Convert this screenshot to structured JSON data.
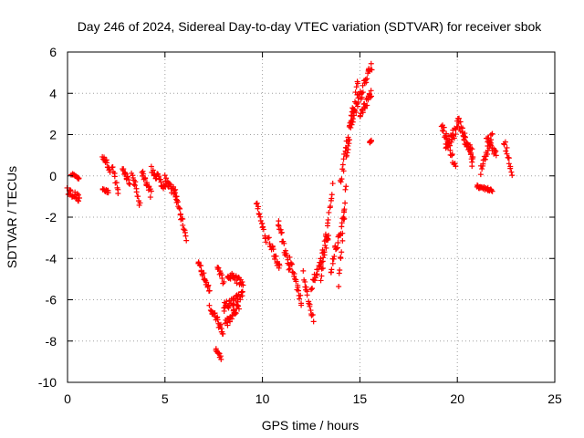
{
  "chart_data": {
    "type": "scatter",
    "title": "Day 246 of 2024, Sidereal Day-to-day VTEC variation (SDTVAR) for receiver sbok",
    "xlabel": "GPS time / hours",
    "ylabel": "SDTVAR / TECUs",
    "xlim": [
      0,
      25
    ],
    "ylim": [
      -10,
      6
    ],
    "xticks": [
      0,
      5,
      10,
      15,
      20,
      25
    ],
    "yticks": [
      -10,
      -8,
      -6,
      -4,
      -2,
      0,
      2,
      4,
      6
    ],
    "grid": true,
    "marker": "+",
    "color": "#ff0000",
    "series": [
      {
        "name": "SDTVAR",
        "segments": [
          {
            "x0": 0.0,
            "x1": 0.6,
            "y0": -0.7,
            "y1": -1.1,
            "spread": 0.35
          },
          {
            "x0": 0.2,
            "x1": 0.6,
            "y0": 0.1,
            "y1": -0.1,
            "spread": 0.15
          },
          {
            "x0": 1.8,
            "x1": 2.2,
            "y0": 1.0,
            "y1": 0.2,
            "spread": 0.3
          },
          {
            "x0": 1.8,
            "x1": 2.1,
            "y0": -0.6,
            "y1": -0.8,
            "spread": 0.15
          },
          {
            "x0": 2.3,
            "x1": 2.6,
            "y0": 0.5,
            "y1": -0.8,
            "spread": 0.25
          },
          {
            "x0": 2.8,
            "x1": 3.2,
            "y0": 0.3,
            "y1": -0.3,
            "spread": 0.3
          },
          {
            "x0": 3.3,
            "x1": 3.7,
            "y0": 0.2,
            "y1": -1.4,
            "spread": 0.3
          },
          {
            "x0": 3.8,
            "x1": 4.3,
            "y0": 0.2,
            "y1": -0.9,
            "spread": 0.4
          },
          {
            "x0": 4.3,
            "x1": 5.0,
            "y0": 0.3,
            "y1": -0.5,
            "spread": 0.45
          },
          {
            "x0": 5.0,
            "x1": 5.6,
            "y0": -0.1,
            "y1": -1.0,
            "spread": 0.4
          },
          {
            "x0": 5.5,
            "x1": 6.1,
            "y0": -0.8,
            "y1": -3.0,
            "spread": 0.3
          },
          {
            "x0": 6.7,
            "x1": 7.3,
            "y0": -4.2,
            "y1": -5.6,
            "spread": 0.35
          },
          {
            "x0": 7.3,
            "x1": 8.0,
            "y0": -6.3,
            "y1": -7.6,
            "spread": 0.45
          },
          {
            "x0": 7.6,
            "x1": 7.9,
            "y0": -8.4,
            "y1": -8.8,
            "spread": 0.2
          },
          {
            "x0": 7.7,
            "x1": 8.0,
            "y0": -4.4,
            "y1": -5.2,
            "spread": 0.3
          },
          {
            "x0": 8.0,
            "x1": 9.0,
            "y0": -6.4,
            "y1": -5.8,
            "spread": 0.5
          },
          {
            "x0": 8.2,
            "x1": 9.0,
            "y0": -4.8,
            "y1": -5.2,
            "spread": 0.4
          },
          {
            "x0": 8.1,
            "x1": 8.8,
            "y0": -7.2,
            "y1": -6.3,
            "spread": 0.4
          },
          {
            "x0": 9.7,
            "x1": 10.2,
            "y0": -1.2,
            "y1": -3.2,
            "spread": 0.3
          },
          {
            "x0": 10.3,
            "x1": 10.9,
            "y0": -3.0,
            "y1": -4.5,
            "spread": 0.4
          },
          {
            "x0": 10.8,
            "x1": 11.4,
            "y0": -2.2,
            "y1": -4.6,
            "spread": 0.4
          },
          {
            "x0": 11.4,
            "x1": 12.0,
            "y0": -4.0,
            "y1": -6.2,
            "spread": 0.4
          },
          {
            "x0": 12.1,
            "x1": 12.6,
            "y0": -4.8,
            "y1": -7.0,
            "spread": 0.4
          },
          {
            "x0": 12.5,
            "x1": 13.4,
            "y0": -5.5,
            "y1": -3.0,
            "spread": 0.5
          },
          {
            "x0": 13.0,
            "x1": 13.6,
            "y0": -5.0,
            "y1": -0.5,
            "spread": 0.6
          },
          {
            "x0": 13.5,
            "x1": 14.2,
            "y0": -4.5,
            "y1": -1.8,
            "spread": 0.6
          },
          {
            "x0": 13.9,
            "x1": 14.3,
            "y0": -5.3,
            "y1": -0.5,
            "spread": 0.5
          },
          {
            "x0": 14.0,
            "x1": 14.6,
            "y0": -0.5,
            "y1": 3.0,
            "spread": 0.7
          },
          {
            "x0": 14.3,
            "x1": 14.9,
            "y0": 1.0,
            "y1": 4.5,
            "spread": 0.7
          },
          {
            "x0": 14.6,
            "x1": 15.6,
            "y0": 2.8,
            "y1": 5.3,
            "spread": 0.6
          },
          {
            "x0": 15.0,
            "x1": 15.6,
            "y0": 3.0,
            "y1": 4.0,
            "spread": 0.4
          },
          {
            "x0": 15.5,
            "x1": 15.6,
            "y0": 1.6,
            "y1": 1.7,
            "spread": 0.05
          },
          {
            "x0": 19.2,
            "x1": 19.9,
            "y0": 2.6,
            "y1": 0.4,
            "spread": 0.5
          },
          {
            "x0": 19.4,
            "x1": 20.0,
            "y0": 1.4,
            "y1": 2.3,
            "spread": 0.5
          },
          {
            "x0": 20.0,
            "x1": 20.8,
            "y0": 2.9,
            "y1": 0.6,
            "spread": 0.6
          },
          {
            "x0": 20.3,
            "x1": 20.8,
            "y0": 2.0,
            "y1": 1.0,
            "spread": 0.4
          },
          {
            "x0": 21.0,
            "x1": 21.8,
            "y0": -0.5,
            "y1": -0.7,
            "spread": 0.15
          },
          {
            "x0": 21.2,
            "x1": 21.8,
            "y0": 0.2,
            "y1": 2.0,
            "spread": 0.4
          },
          {
            "x0": 21.5,
            "x1": 22.0,
            "y0": 1.8,
            "y1": 1.0,
            "spread": 0.4
          },
          {
            "x0": 22.4,
            "x1": 22.8,
            "y0": 1.7,
            "y1": 0.1,
            "spread": 0.4
          }
        ]
      }
    ]
  }
}
